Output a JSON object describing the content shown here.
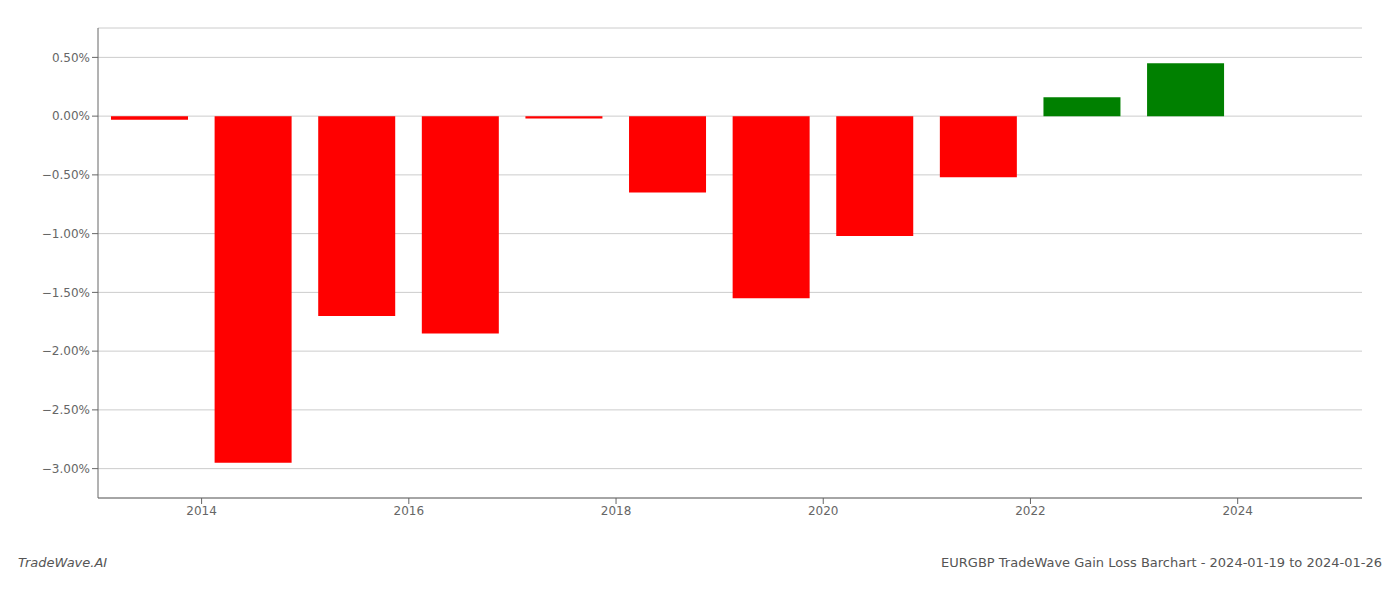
{
  "chart_data": {
    "type": "bar",
    "x": [
      2013.5,
      2014.5,
      2015.5,
      2016.5,
      2017.5,
      2018.5,
      2019.5,
      2020.5,
      2021.5,
      2022.5,
      2023.5
    ],
    "values": [
      -0.03,
      -2.95,
      -1.7,
      -1.85,
      -0.02,
      -0.65,
      -1.55,
      -1.02,
      -0.52,
      0.16,
      0.45
    ],
    "colors": [
      "#ff0000",
      "#ff0000",
      "#ff0000",
      "#ff0000",
      "#ff0000",
      "#ff0000",
      "#ff0000",
      "#ff0000",
      "#ff0000",
      "#008000",
      "#008000"
    ],
    "xlim": [
      2013.0,
      2025.2
    ],
    "xticks": [
      2014,
      2016,
      2018,
      2020,
      2022,
      2024
    ],
    "ylim": [
      -3.25,
      0.75
    ],
    "yticks": [
      {
        "value": -3.0,
        "label": "−3.00%"
      },
      {
        "value": -2.5,
        "label": "−2.50%"
      },
      {
        "value": -2.0,
        "label": "−2.00%"
      },
      {
        "value": -1.5,
        "label": "−1.50%"
      },
      {
        "value": -1.0,
        "label": "−1.00%"
      },
      {
        "value": -0.5,
        "label": "−0.50%"
      },
      {
        "value": 0.0,
        "label": "0.00%"
      },
      {
        "value": 0.5,
        "label": "0.50%"
      }
    ],
    "grid": true,
    "annotations": [
      "TradeWave.AI",
      "EURGBP TradeWave Gain Loss Barchart - 2024-01-19 to 2024-01-26"
    ]
  }
}
